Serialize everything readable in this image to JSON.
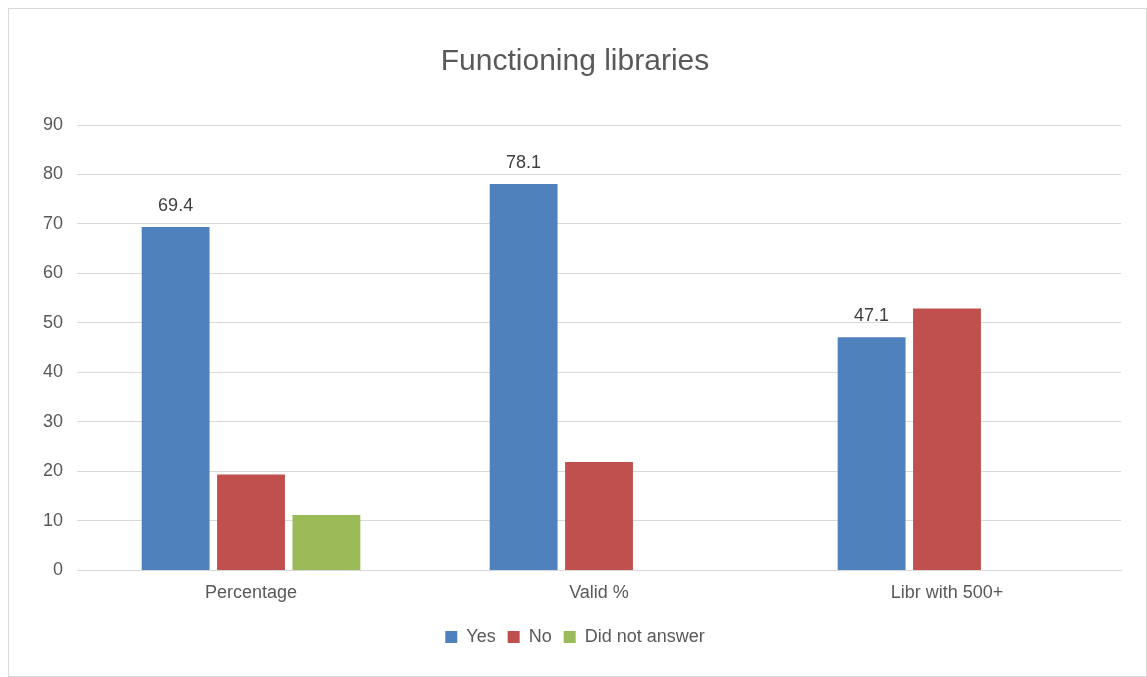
{
  "chart_data": {
    "type": "bar",
    "title": "Functioning libraries",
    "categories": [
      "Percentage",
      "Valid %",
      "Libr with 500+"
    ],
    "series": [
      {
        "name": "Yes",
        "color": "#4f81bd",
        "values": [
          69.4,
          78.1,
          47.1
        ],
        "value_labels": [
          "69.4",
          "78.1",
          "47.1"
        ]
      },
      {
        "name": "No",
        "color": "#c0504d",
        "values": [
          19.4,
          21.9,
          52.9
        ]
      },
      {
        "name": "Did not answer",
        "color": "#9bbb59",
        "values": [
          11.2,
          null,
          null
        ]
      }
    ],
    "ylim": [
      0,
      90
    ],
    "yticks": [
      0,
      10,
      20,
      30,
      40,
      50,
      60,
      70,
      80,
      90
    ],
    "grid": "y",
    "legend": "bottom"
  }
}
